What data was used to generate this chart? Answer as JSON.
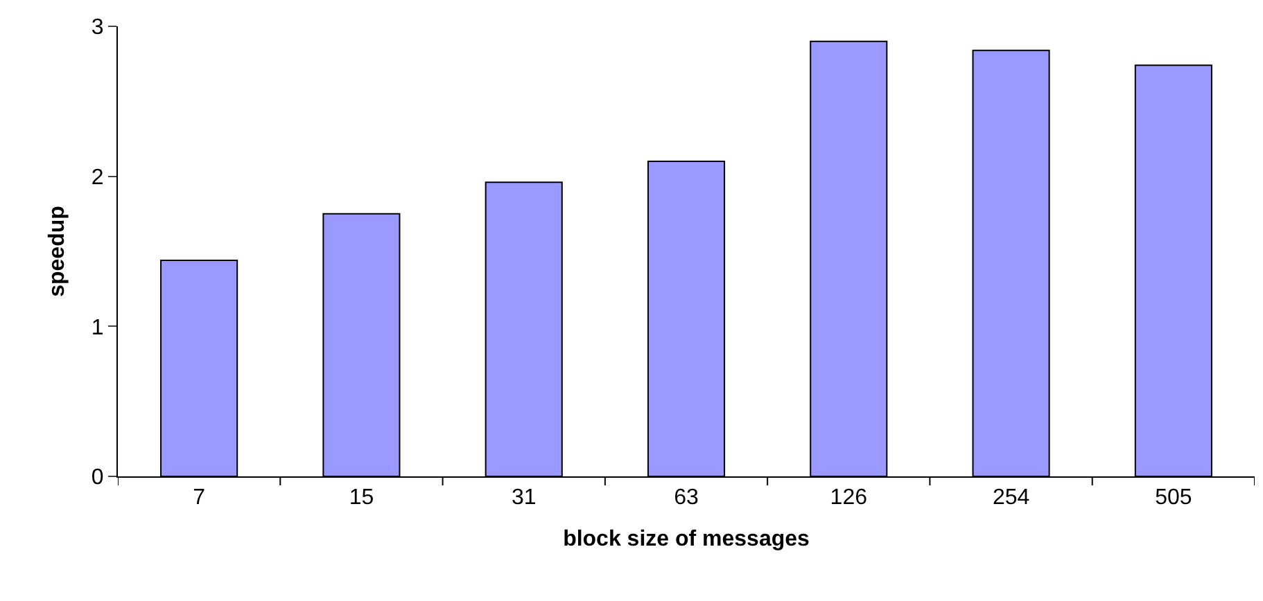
{
  "chart_data": {
    "type": "bar",
    "xlabel": "block size of messages",
    "ylabel": "speedup",
    "categories": [
      "7",
      "15",
      "31",
      "63",
      "126",
      "254",
      "505"
    ],
    "values": [
      1.44,
      1.75,
      1.96,
      2.1,
      2.9,
      2.84,
      2.74
    ],
    "color": "#9999ff",
    "ylim": [
      0,
      3
    ],
    "yticks": [
      0,
      1,
      2,
      3
    ]
  }
}
